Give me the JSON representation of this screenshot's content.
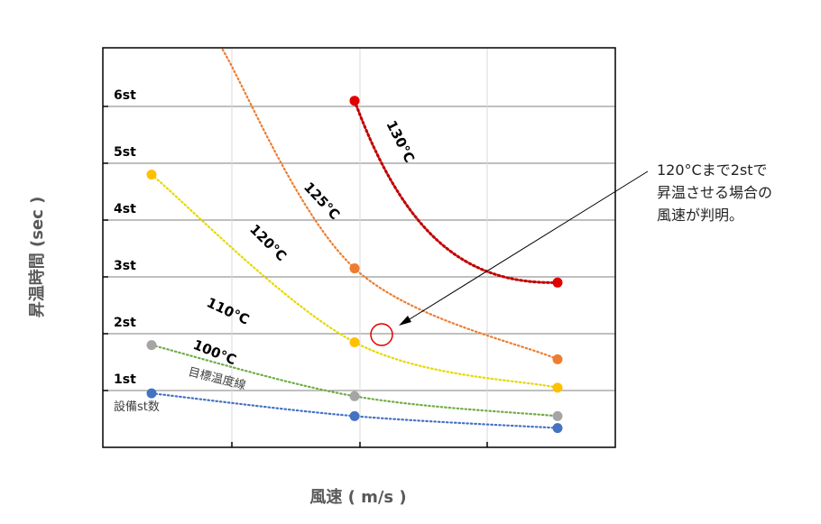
{
  "chart_data": {
    "type": "scatter",
    "xlabel": "風速 ( m/s )",
    "ylabel": "昇温時間 (sec )",
    "x_ticks": [],
    "y_ticks": [
      "1st",
      "2st",
      "3st",
      "4st",
      "5st",
      "6st"
    ],
    "y_corner_label": "設備st数",
    "grid": true,
    "series": [
      {
        "name": "100°C",
        "color": "#4472C4",
        "x": [
          1,
          2,
          3
        ],
        "y": [
          0.95,
          0.55,
          0.34
        ],
        "curve": [
          [
            1,
            0.95
          ],
          [
            2,
            0.55
          ],
          [
            3,
            0.34
          ]
        ]
      },
      {
        "name": "110°C",
        "color": "#A5A5A5",
        "curve_color": "#70AD47",
        "x": [
          1,
          2,
          3
        ],
        "y": [
          1.8,
          0.9,
          0.55
        ],
        "curve": [
          [
            1,
            1.8
          ],
          [
            2,
            0.9
          ],
          [
            3,
            0.55
          ]
        ]
      },
      {
        "name": "120°C",
        "color": "#FFC000",
        "curve_color": "#E6D800",
        "x": [
          1,
          2,
          3
        ],
        "y": [
          4.8,
          1.85,
          1.05
        ],
        "curve": [
          [
            1,
            4.8
          ],
          [
            2,
            1.85
          ],
          [
            3,
            1.05
          ]
        ]
      },
      {
        "name": "125°C",
        "color": "#ED7D31",
        "x": [
          2,
          3
        ],
        "y": [
          3.15,
          1.55
        ],
        "curve": [
          [
            1.35,
            7.0
          ],
          [
            2,
            3.15
          ],
          [
            3,
            1.55
          ]
        ]
      },
      {
        "name": "130°C",
        "color": "#C00000",
        "point_color": "#E00000",
        "x": [
          2,
          3
        ],
        "y": [
          6.1,
          2.9
        ],
        "curve": [
          [
            2,
            6.1
          ],
          [
            3,
            2.9
          ]
        ]
      }
    ],
    "reference_line_label": "目標温度線",
    "annotation": {
      "lines": [
        "120°Cまで2stで",
        "昇温させる場合の",
        "風速が判明。"
      ],
      "target": {
        "x": 2.1,
        "y": 1.6
      }
    }
  }
}
